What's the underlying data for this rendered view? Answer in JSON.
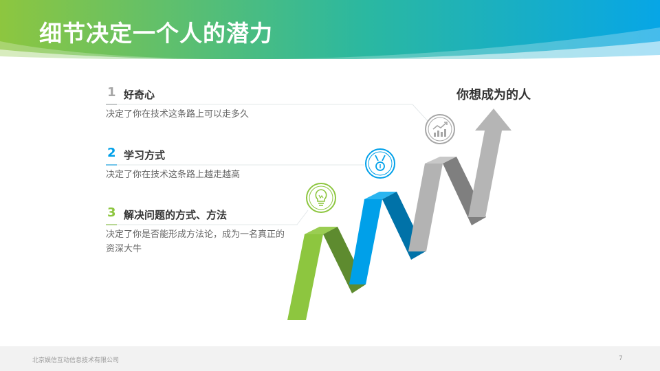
{
  "slide": {
    "title": "细节决定一个人的潜力",
    "goal_label": "你想成为的人"
  },
  "items": [
    {
      "number": "1",
      "title": "好奇心",
      "desc": "决定了你在技术这条路上可以走多久",
      "color": "#a6a6a6"
    },
    {
      "number": "2",
      "title": "学习方式",
      "desc": "决定了你在技术这条路上越走越高",
      "color": "#00a0e9"
    },
    {
      "number": "3",
      "title": "解决问题的方式、方法",
      "desc": "决定了你是否能形成方法论，成为一名真正的资深大牛",
      "color": "#8dc63f"
    }
  ],
  "icons": [
    "lightbulb-icon",
    "medal-icon",
    "growth-chart-icon"
  ],
  "colors": {
    "green": "#8dc63f",
    "blue": "#00a0e9",
    "gray": "#a6a6a6",
    "header_start": "#8dc63f",
    "header_end": "#00a0e9"
  },
  "footer": {
    "company": "北京娱信互动信息技术有限公司",
    "page": "7"
  }
}
